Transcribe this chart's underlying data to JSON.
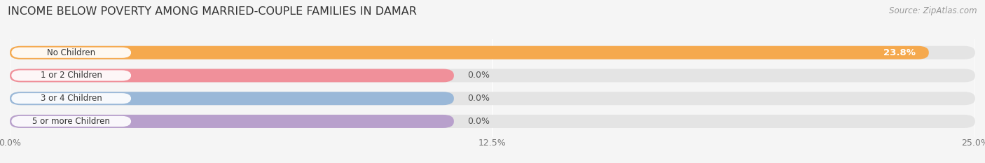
{
  "title": "INCOME BELOW POVERTY AMONG MARRIED-COUPLE FAMILIES IN DAMAR",
  "source": "Source: ZipAtlas.com",
  "categories": [
    "No Children",
    "1 or 2 Children",
    "3 or 4 Children",
    "5 or more Children"
  ],
  "values": [
    23.8,
    0.0,
    0.0,
    0.0
  ],
  "bar_colors": [
    "#f5a94e",
    "#f0909a",
    "#9ab8d8",
    "#b8a0cc"
  ],
  "xlim": [
    0,
    25.0
  ],
  "xticks": [
    0.0,
    12.5,
    25.0
  ],
  "xtick_labels": [
    "0.0%",
    "12.5%",
    "25.0%"
  ],
  "background_color": "#f5f5f5",
  "bar_bg_color": "#e4e4e4",
  "title_fontsize": 11.5,
  "source_fontsize": 8.5,
  "tick_fontsize": 9,
  "bar_label_fontsize": 9,
  "category_fontsize": 8.5,
  "value_label_inside": "23.8%",
  "zero_stub_pct": 11.5
}
